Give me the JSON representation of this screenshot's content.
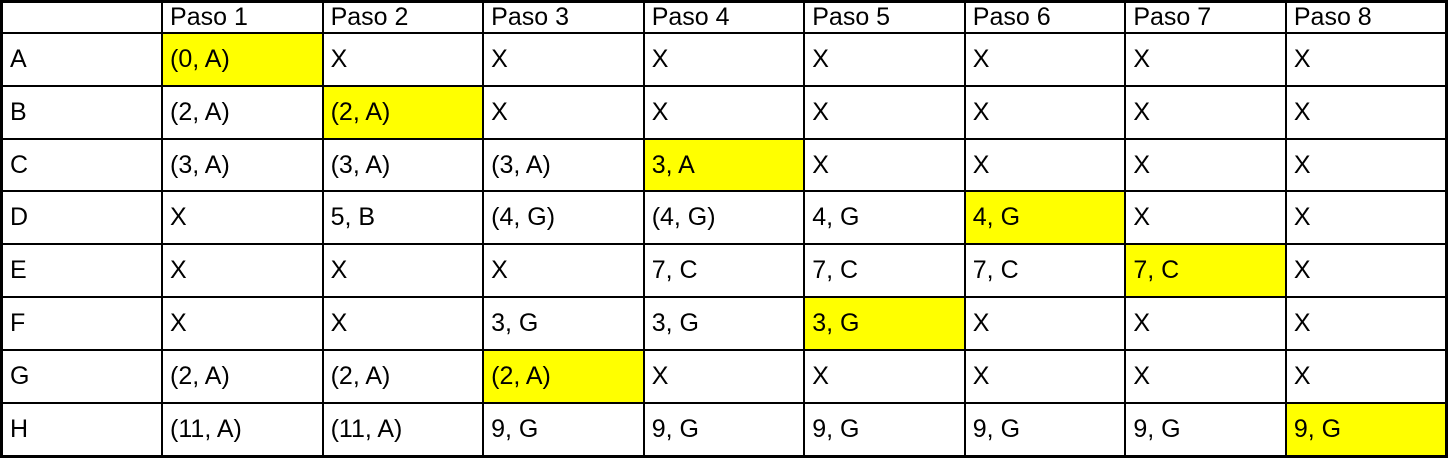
{
  "table": {
    "header": [
      "",
      "Paso 1",
      "Paso 2",
      "Paso 3",
      "Paso 4",
      "Paso 5",
      "Paso 6",
      "Paso 7",
      "Paso 8"
    ],
    "rows": [
      {
        "label": "A",
        "cells": [
          {
            "text": "(0, A)",
            "highlight": true
          },
          {
            "text": "X",
            "highlight": false
          },
          {
            "text": "X",
            "highlight": false
          },
          {
            "text": "X",
            "highlight": false
          },
          {
            "text": "X",
            "highlight": false
          },
          {
            "text": "X",
            "highlight": false
          },
          {
            "text": "X",
            "highlight": false
          },
          {
            "text": "X",
            "highlight": false
          }
        ]
      },
      {
        "label": "B",
        "cells": [
          {
            "text": "(2, A)",
            "highlight": false
          },
          {
            "text": "(2, A)",
            "highlight": true
          },
          {
            "text": "X",
            "highlight": false
          },
          {
            "text": "X",
            "highlight": false
          },
          {
            "text": "X",
            "highlight": false
          },
          {
            "text": "X",
            "highlight": false
          },
          {
            "text": "X",
            "highlight": false
          },
          {
            "text": "X",
            "highlight": false
          }
        ]
      },
      {
        "label": "C",
        "cells": [
          {
            "text": "(3, A)",
            "highlight": false
          },
          {
            "text": "(3, A)",
            "highlight": false
          },
          {
            "text": "(3, A)",
            "highlight": false
          },
          {
            "text": "3, A",
            "highlight": true
          },
          {
            "text": "X",
            "highlight": false
          },
          {
            "text": "X",
            "highlight": false
          },
          {
            "text": "X",
            "highlight": false
          },
          {
            "text": "X",
            "highlight": false
          }
        ]
      },
      {
        "label": "D",
        "cells": [
          {
            "text": "X",
            "highlight": false
          },
          {
            "text": "5, B",
            "highlight": false
          },
          {
            "text": "(4, G)",
            "highlight": false
          },
          {
            "text": "(4, G)",
            "highlight": false
          },
          {
            "text": "4, G",
            "highlight": false
          },
          {
            "text": "4, G",
            "highlight": true
          },
          {
            "text": "X",
            "highlight": false
          },
          {
            "text": "X",
            "highlight": false
          }
        ]
      },
      {
        "label": "E",
        "cells": [
          {
            "text": "X",
            "highlight": false
          },
          {
            "text": "X",
            "highlight": false
          },
          {
            "text": "X",
            "highlight": false
          },
          {
            "text": "7, C",
            "highlight": false
          },
          {
            "text": "7, C",
            "highlight": false
          },
          {
            "text": "7, C",
            "highlight": false
          },
          {
            "text": "7, C",
            "highlight": true
          },
          {
            "text": "X",
            "highlight": false
          }
        ]
      },
      {
        "label": "F",
        "cells": [
          {
            "text": "X",
            "highlight": false
          },
          {
            "text": "X",
            "highlight": false
          },
          {
            "text": "3, G",
            "highlight": false
          },
          {
            "text": "3, G",
            "highlight": false
          },
          {
            "text": "3, G",
            "highlight": true
          },
          {
            "text": "X",
            "highlight": false
          },
          {
            "text": "X",
            "highlight": false
          },
          {
            "text": "X",
            "highlight": false
          }
        ]
      },
      {
        "label": "G",
        "cells": [
          {
            "text": "(2, A)",
            "highlight": false
          },
          {
            "text": "(2, A)",
            "highlight": false
          },
          {
            "text": "(2, A)",
            "highlight": true
          },
          {
            "text": "X",
            "highlight": false
          },
          {
            "text": "X",
            "highlight": false
          },
          {
            "text": "X",
            "highlight": false
          },
          {
            "text": "X",
            "highlight": false
          },
          {
            "text": "X",
            "highlight": false
          }
        ]
      },
      {
        "label": "H",
        "cells": [
          {
            "text": "(11, A)",
            "highlight": false
          },
          {
            "text": "(11, A)",
            "highlight": false
          },
          {
            "text": "9, G",
            "highlight": false
          },
          {
            "text": "9, G",
            "highlight": false
          },
          {
            "text": "9, G",
            "highlight": false
          },
          {
            "text": "9, G",
            "highlight": false
          },
          {
            "text": "9, G",
            "highlight": false
          },
          {
            "text": "9, G",
            "highlight": true
          }
        ]
      }
    ],
    "colors": {
      "highlight": "#FFFF00",
      "border": "#000000",
      "background": "#FFFFFF",
      "text": "#000000"
    }
  }
}
